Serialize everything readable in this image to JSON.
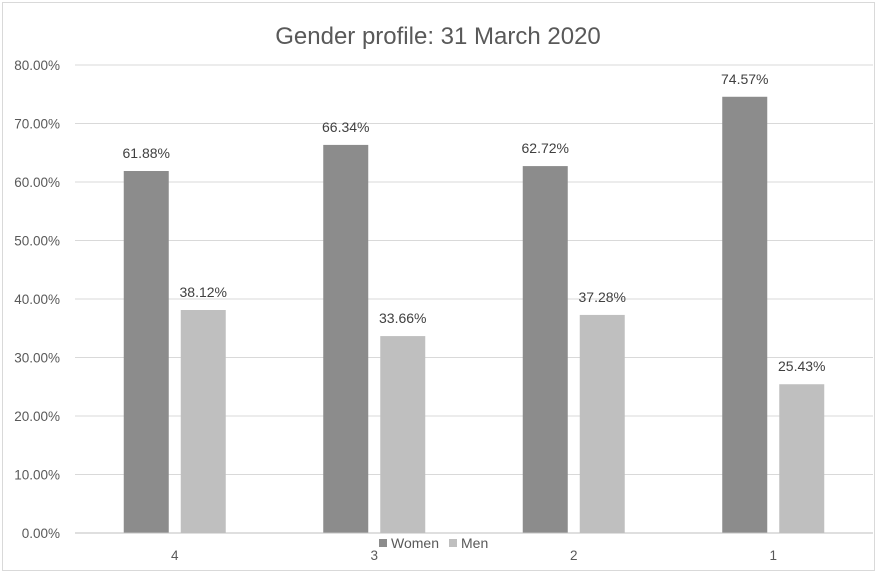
{
  "chart_data": {
    "type": "bar",
    "title": "Gender profile: 31 March 2020",
    "categories": [
      "4",
      "3",
      "2",
      "1"
    ],
    "series": [
      {
        "name": "Women",
        "color": "#8c8c8c",
        "values": [
          61.88,
          66.34,
          62.72,
          74.57
        ],
        "labels": [
          "61.88%",
          "66.34%",
          "62.72%",
          "74.57%"
        ]
      },
      {
        "name": "Men",
        "color": "#bfbfbf",
        "values": [
          38.12,
          33.66,
          37.28,
          25.43
        ],
        "labels": [
          "38.12%",
          "33.66%",
          "37.28%",
          "25.43%"
        ]
      }
    ],
    "ylim": [
      0,
      80
    ],
    "yticks": [
      0,
      10,
      20,
      30,
      40,
      50,
      60,
      70,
      80
    ],
    "ytick_labels": [
      "0.00%",
      "10.00%",
      "20.00%",
      "30.00%",
      "40.00%",
      "50.00%",
      "60.00%",
      "70.00%",
      "80.00%"
    ],
    "grid": true,
    "legend_position": "bottom"
  }
}
